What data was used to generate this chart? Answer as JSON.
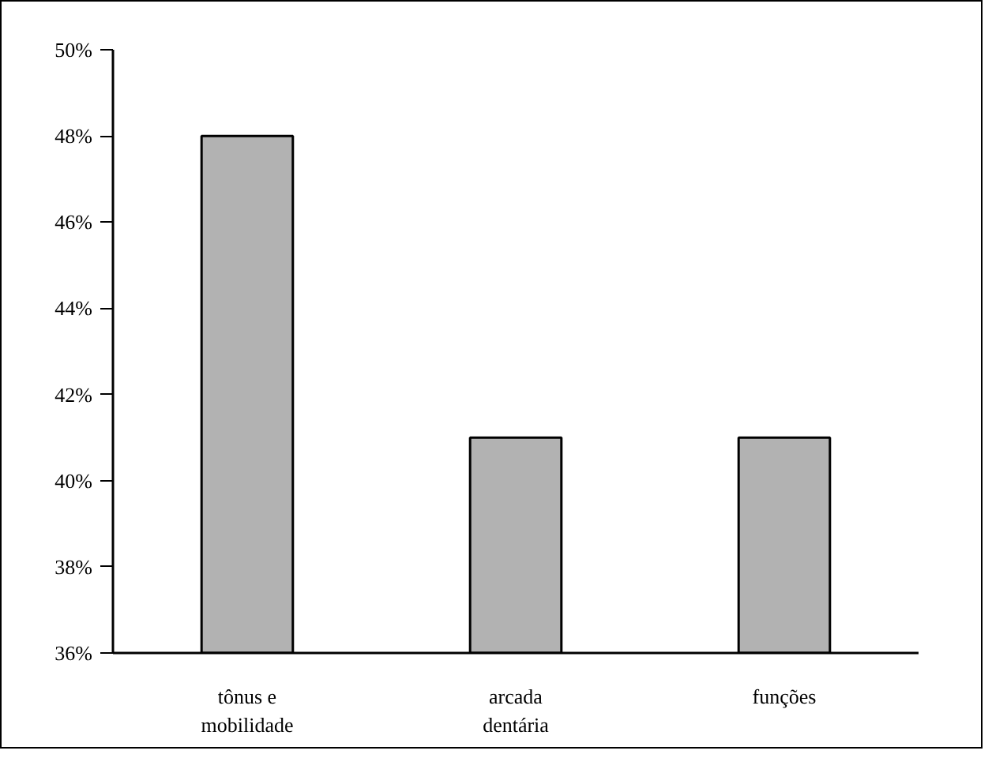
{
  "chart_data": {
    "type": "bar",
    "categories": [
      "tônus e mobilidade",
      "arcada dentária",
      "funções"
    ],
    "values": [
      48,
      41,
      41
    ],
    "color": "#b2b2b2",
    "ylim": [
      36,
      50
    ],
    "yticks": [
      {
        "value": 36,
        "label": "36%"
      },
      {
        "value": 38,
        "label": "38%"
      },
      {
        "value": 40,
        "label": "40%"
      },
      {
        "value": 42,
        "label": "42%"
      },
      {
        "value": 44,
        "label": "44%"
      },
      {
        "value": 46,
        "label": "46%"
      },
      {
        "value": 48,
        "label": "48%"
      },
      {
        "value": 50,
        "label": "50%"
      }
    ],
    "grid": false
  }
}
